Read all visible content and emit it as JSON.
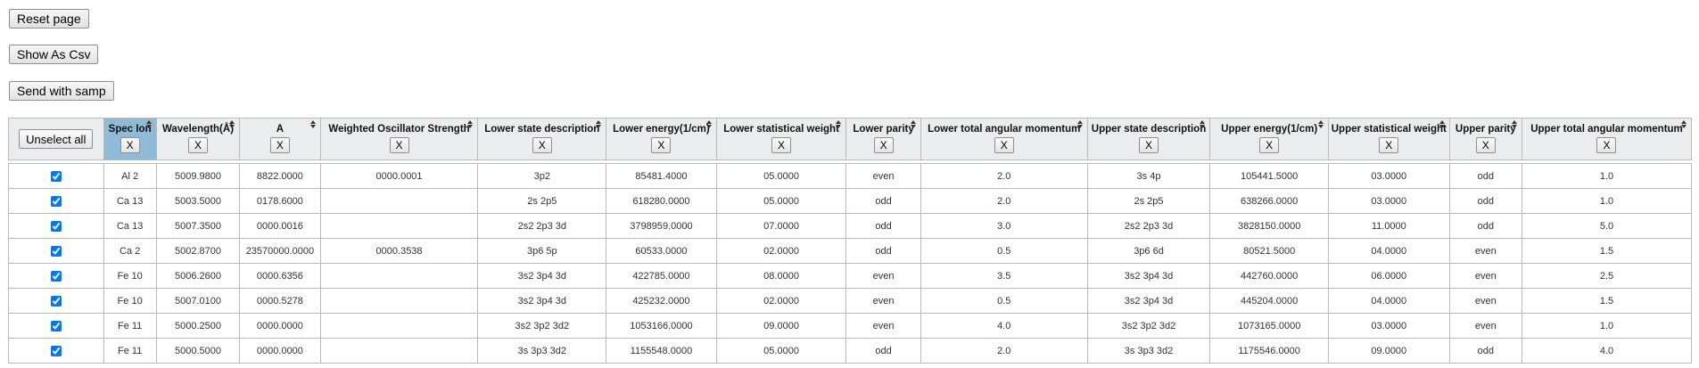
{
  "buttons": {
    "reset": "Reset page",
    "csv": "Show As Csv",
    "samp": "Send with samp",
    "unselect_all": "Unselect all",
    "remove_col": "X"
  },
  "columns": [
    "Spec Ion",
    "Wavelength(Å)",
    "A",
    "Weighted Oscillator Strength",
    "Lower state description",
    "Lower energy(1/cm)",
    "Lower statistical weight",
    "Lower parity",
    "Lower total angular momentum",
    "Upper state description",
    "Upper energy(1/cm)",
    "Upper statistical weight",
    "Upper parity",
    "Upper total angular momentum"
  ],
  "selected_column": 0,
  "rows": [
    {
      "checked": true,
      "cells": [
        "Al 2",
        "5009.9800",
        "8822.0000",
        "0000.0001",
        "3p2",
        "85481.4000",
        "05.0000",
        "even",
        "2.0",
        "3s 4p",
        "105441.5000",
        "03.0000",
        "odd",
        "1.0"
      ]
    },
    {
      "checked": true,
      "cells": [
        "Ca 13",
        "5003.5000",
        "0178.6000",
        "",
        "2s 2p5",
        "618280.0000",
        "05.0000",
        "odd",
        "2.0",
        "2s 2p5",
        "638266.0000",
        "03.0000",
        "odd",
        "1.0"
      ]
    },
    {
      "checked": true,
      "cells": [
        "Ca 13",
        "5007.3500",
        "0000.0016",
        "",
        "2s2 2p3 3d",
        "3798959.0000",
        "07.0000",
        "odd",
        "3.0",
        "2s2 2p3 3d",
        "3828150.0000",
        "11.0000",
        "odd",
        "5.0"
      ]
    },
    {
      "checked": true,
      "cells": [
        "Ca 2",
        "5002.8700",
        "23570000.0000",
        "0000.3538",
        "3p6 5p",
        "60533.0000",
        "02.0000",
        "odd",
        "0.5",
        "3p6 6d",
        "80521.5000",
        "04.0000",
        "even",
        "1.5"
      ]
    },
    {
      "checked": true,
      "cells": [
        "Fe 10",
        "5006.2600",
        "0000.6356",
        "",
        "3s2 3p4 3d",
        "422785.0000",
        "08.0000",
        "even",
        "3.5",
        "3s2 3p4 3d",
        "442760.0000",
        "06.0000",
        "even",
        "2.5"
      ]
    },
    {
      "checked": true,
      "cells": [
        "Fe 10",
        "5007.0100",
        "0000.5278",
        "",
        "3s2 3p4 3d",
        "425232.0000",
        "02.0000",
        "even",
        "0.5",
        "3s2 3p4 3d",
        "445204.0000",
        "04.0000",
        "even",
        "1.5"
      ]
    },
    {
      "checked": true,
      "cells": [
        "Fe 11",
        "5000.2500",
        "0000.0000",
        "",
        "3s2 3p2 3d2",
        "1053166.0000",
        "09.0000",
        "even",
        "4.0",
        "3s2 3p2 3d2",
        "1073165.0000",
        "03.0000",
        "even",
        "1.0"
      ]
    },
    {
      "checked": true,
      "cells": [
        "Fe 11",
        "5000.5000",
        "0000.0000",
        "",
        "3s 3p3 3d2",
        "1155548.0000",
        "05.0000",
        "odd",
        "2.0",
        "3s 3p3 3d2",
        "1175546.0000",
        "09.0000",
        "odd",
        "4.0"
      ]
    }
  ]
}
